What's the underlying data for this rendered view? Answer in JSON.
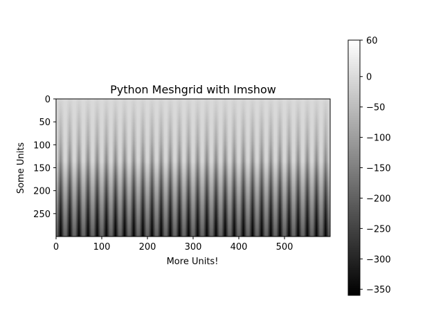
{
  "chart_data": {
    "type": "heatmap",
    "title": "Python Meshgrid with Imshow",
    "xlabel": "More Units!",
    "ylabel": "Some Units",
    "colormap": "gray",
    "image": {
      "columns": 600,
      "rows": 300,
      "stripe_count": 30,
      "row_min": 0,
      "row_max": 300
    },
    "x_ticks": [
      0,
      100,
      200,
      300,
      400,
      500
    ],
    "y_ticks": [
      0,
      50,
      100,
      150,
      200,
      250
    ],
    "xlim": [
      0,
      600
    ],
    "ylim": [
      300,
      0
    ],
    "colorbar": {
      "vmin": -360,
      "vmax": 60,
      "ticks": [
        60,
        0,
        -50,
        -100,
        -150,
        -200,
        -250,
        -300,
        -350
      ]
    }
  }
}
